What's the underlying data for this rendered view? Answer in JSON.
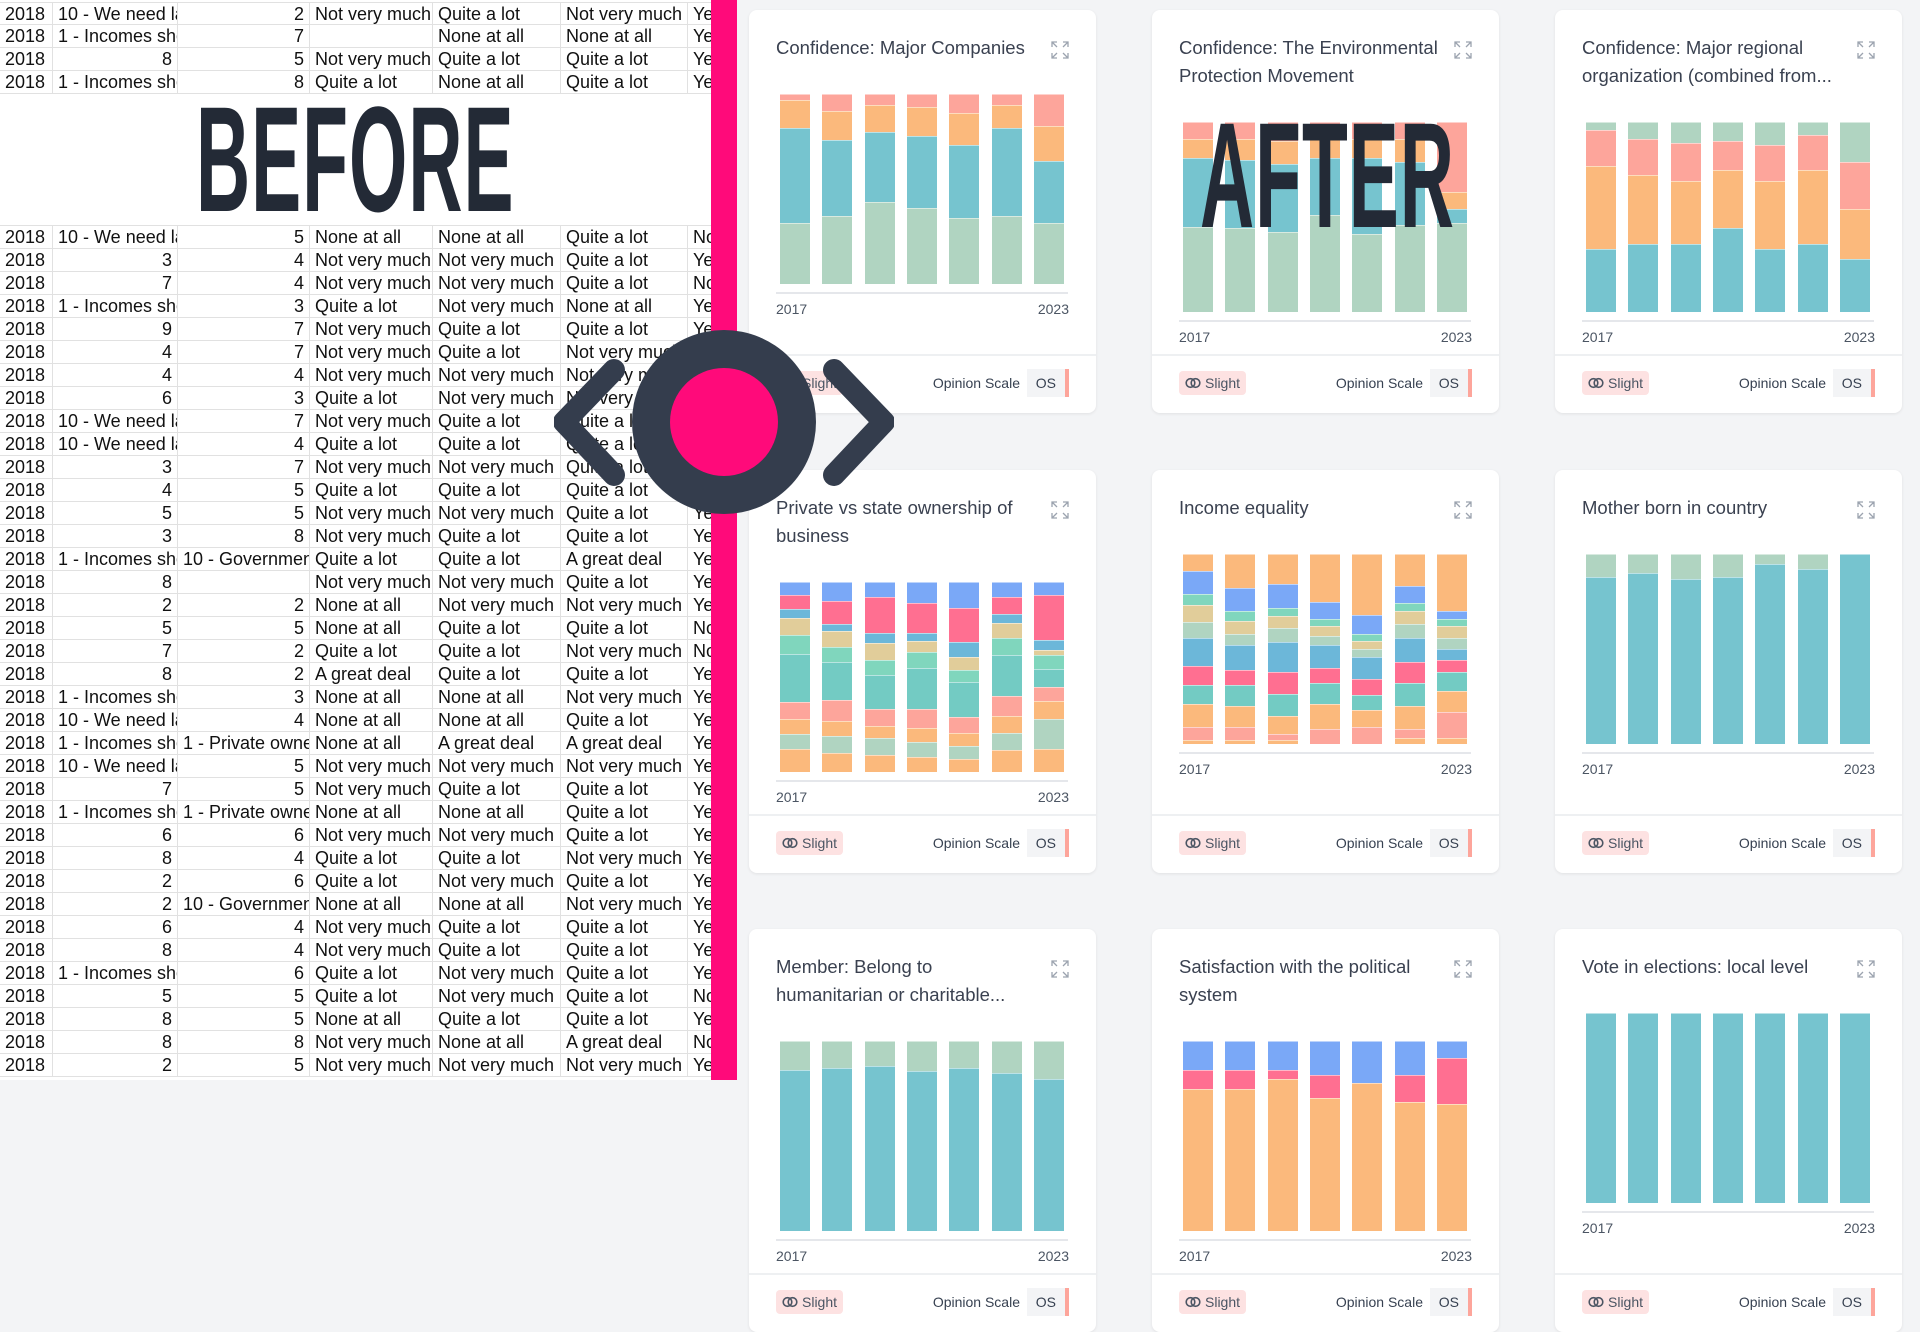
{
  "overlay": {
    "before_label": "BEFORE",
    "after_label": "AFTER",
    "accent": "#ff0a7a",
    "dark": "#343d4d"
  },
  "spreadsheet": {
    "rows": [
      [
        "2018",
        "10 - We need lar",
        "2",
        "Not very much",
        "Quite a lot",
        "Not very much",
        "Ye"
      ],
      [
        "2018",
        "1 - Incomes shou",
        "7",
        "",
        "None at all",
        "None at all",
        "Ye"
      ],
      [
        "2018",
        "8",
        "5",
        "Not very much",
        "Quite a lot",
        "Quite a lot",
        "Ye"
      ],
      [
        "2018",
        "1 - Incomes shou",
        "8",
        "Quite a lot",
        "None at all",
        "Quite a lot",
        "Ye"
      ],
      [
        "2018",
        "10 - We need lar",
        "5",
        "None at all",
        "None at all",
        "Quite a lot",
        "No"
      ],
      [
        "2018",
        "3",
        "4",
        "Not very much",
        "Not very much",
        "Quite a lot",
        "Ye"
      ],
      [
        "2018",
        "7",
        "4",
        "Not very much",
        "Not very much",
        "Quite a lot",
        "No"
      ],
      [
        "2018",
        "1 - Incomes shou",
        "3",
        "Quite a lot",
        "Not very much",
        "None at all",
        "Ye"
      ],
      [
        "2018",
        "9",
        "7",
        "Not very much",
        "Quite a lot",
        "Quite a lot",
        "Ye"
      ],
      [
        "2018",
        "4",
        "7",
        "Not very much",
        "Quite a lot",
        "Not very much",
        "Ye"
      ],
      [
        "2018",
        "4",
        "4",
        "Not very much",
        "Not very much",
        "Not very much",
        "Ye"
      ],
      [
        "2018",
        "6",
        "3",
        "Quite a lot",
        "Not very much",
        "Not very much",
        "Ye"
      ],
      [
        "2018",
        "10 - We need lar",
        "7",
        "Not very much",
        "Quite a lot",
        "Quite a lot",
        "Ye"
      ],
      [
        "2018",
        "10 - We need lar",
        "4",
        "Quite a lot",
        "Quite a lot",
        "Quite a lot",
        "Ye"
      ],
      [
        "2018",
        "3",
        "7",
        "Not very much",
        "Not very much",
        "Quite a lot",
        "Ye"
      ],
      [
        "2018",
        "4",
        "5",
        "Quite a lot",
        "Quite a lot",
        "Quite a lot",
        "Ye"
      ],
      [
        "2018",
        "5",
        "5",
        "Not very much",
        "Not very much",
        "Quite a lot",
        "Ye"
      ],
      [
        "2018",
        "3",
        "8",
        "Not very much",
        "Quite a lot",
        "Quite a lot",
        "Ye"
      ],
      [
        "2018",
        "1 - Incomes shou",
        "10 - Government",
        "Quite a lot",
        "Quite a lot",
        "A great deal",
        "Ye"
      ],
      [
        "2018",
        "8",
        "",
        "Not very much",
        "Not very much",
        "Quite a lot",
        "Ye"
      ],
      [
        "2018",
        "2",
        "2",
        "None at all",
        "Not very much",
        "Not very much",
        "Ye"
      ],
      [
        "2018",
        "5",
        "5",
        "None at all",
        "Quite a lot",
        "Quite a lot",
        "No"
      ],
      [
        "2018",
        "7",
        "2",
        "Quite a lot",
        "Quite a lot",
        "Not very much",
        "No"
      ],
      [
        "2018",
        "8",
        "2",
        "A great deal",
        "Quite a lot",
        "Quite a lot",
        "Ye"
      ],
      [
        "2018",
        "1 - Incomes shou",
        "3",
        "None at all",
        "None at all",
        "Not very much",
        "Ye"
      ],
      [
        "2018",
        "10 - We need lar",
        "4",
        "None at all",
        "None at all",
        "Quite a lot",
        "Ye"
      ],
      [
        "2018",
        "1 - Incomes shou",
        "1 - Private owne",
        "None at all",
        "A great deal",
        "A great deal",
        "Ye"
      ],
      [
        "2018",
        "10 - We need lar",
        "5",
        "Not very much",
        "Not very much",
        "Not very much",
        "Ye"
      ],
      [
        "2018",
        "7",
        "5",
        "Not very much",
        "Quite a lot",
        "Quite a lot",
        "Ye"
      ],
      [
        "2018",
        "1 - Incomes shou",
        "1 - Private owne",
        "None at all",
        "None at all",
        "Quite a lot",
        "Ye"
      ],
      [
        "2018",
        "6",
        "6",
        "Not very much",
        "Not very much",
        "Quite a lot",
        "Ye"
      ],
      [
        "2018",
        "8",
        "4",
        "Quite a lot",
        "Quite a lot",
        "Not very much",
        "Ye"
      ],
      [
        "2018",
        "2",
        "6",
        "Quite a lot",
        "Not very much",
        "Quite a lot",
        "Ye"
      ],
      [
        "2018",
        "2",
        "10 - Government",
        "None at all",
        "None at all",
        "Not very much",
        "Ye"
      ],
      [
        "2018",
        "6",
        "4",
        "Not very much",
        "Quite a lot",
        "Quite a lot",
        "Ye"
      ],
      [
        "2018",
        "8",
        "4",
        "Not very much",
        "Quite a lot",
        "Quite a lot",
        "Ye"
      ],
      [
        "2018",
        "1 - Incomes shou",
        "6",
        "Quite a lot",
        "Not very much",
        "Quite a lot",
        "Ye"
      ],
      [
        "2018",
        "5",
        "5",
        "Quite a lot",
        "Not very much",
        "Quite a lot",
        "No"
      ],
      [
        "2018",
        "8",
        "5",
        "None at all",
        "Quite a lot",
        "Quite a lot",
        "Ye"
      ],
      [
        "2018",
        "8",
        "8",
        "Not very much",
        "None at all",
        "A great deal",
        "No"
      ],
      [
        "2018",
        "2",
        "5",
        "Not very much",
        "Not very much",
        "Not very much",
        "Ye"
      ]
    ]
  },
  "cards_common": {
    "chip_label": "Slight",
    "chip_icon": "rings-icon",
    "scale_label": "Opinion Scale",
    "scale_code": "OS",
    "expand_icon": "expand-icon"
  },
  "chart_data": [
    {
      "type": "bar",
      "stacked": true,
      "title": "Confidence: Major Companies",
      "x_ticks": [
        "2017",
        "2023"
      ],
      "colors": [
        "#b0d4c1",
        "#76c4cf",
        "#fbb97c",
        "#fda59b"
      ],
      "values": [
        [
          32,
          50,
          15,
          3
        ],
        [
          36,
          40,
          15,
          9
        ],
        [
          43,
          37,
          14,
          6
        ],
        [
          40,
          38,
          15,
          7
        ],
        [
          35,
          38,
          17,
          10
        ],
        [
          36,
          46,
          12,
          6
        ],
        [
          32,
          33,
          18,
          17
        ]
      ]
    },
    {
      "type": "bar",
      "stacked": true,
      "title": "Confidence: The Environmental Protection Movement",
      "x_ticks": [
        "2017",
        "2023"
      ],
      "colors": [
        "#b0d4c1",
        "#76c4cf",
        "#fbb97c",
        "#fda59b"
      ],
      "values": [
        [
          45,
          36,
          10,
          9
        ],
        [
          44,
          36,
          11,
          9
        ],
        [
          42,
          36,
          12,
          10
        ],
        [
          51,
          30,
          10,
          9
        ],
        [
          41,
          40,
          10,
          9
        ],
        [
          46,
          33,
          12,
          9
        ],
        [
          47,
          7,
          9,
          37
        ]
      ]
    },
    {
      "type": "bar",
      "stacked": true,
      "title": "Confidence: Major regional organization (combined from...",
      "x_ticks": [
        "2017",
        "2023"
      ],
      "colors": [
        "#76c4cf",
        "#fbb97c",
        "#fda59b",
        "#b0d4c1"
      ],
      "values": [
        [
          33,
          44,
          19,
          4
        ],
        [
          36,
          36,
          19,
          9
        ],
        [
          36,
          33,
          20,
          11
        ],
        [
          44,
          31,
          15,
          10
        ],
        [
          33,
          36,
          19,
          12
        ],
        [
          36,
          39,
          18,
          7
        ],
        [
          28,
          26,
          25,
          21
        ]
      ]
    },
    {
      "type": "bar",
      "stacked": true,
      "title": "Private vs state ownership of business",
      "x_ticks": [
        "2017",
        "2023"
      ],
      "colors": [
        "#fbb97c",
        "#b0d4c1",
        "#fbb97c",
        "#fda59b",
        "#73cbc3",
        "#80d6bd",
        "#e1cd9a",
        "#6cb7d9",
        "#ff6f91",
        "#7aa8f7"
      ],
      "values": [
        [
          12,
          8,
          8,
          9,
          25,
          10,
          9,
          5,
          7,
          7
        ],
        [
          10,
          9,
          8,
          11,
          20,
          8,
          8,
          4,
          12,
          10
        ],
        [
          9,
          9,
          6,
          9,
          18,
          8,
          9,
          5,
          19,
          8
        ],
        [
          8,
          8,
          7,
          10,
          22,
          8,
          6,
          4,
          16,
          11
        ],
        [
          7,
          7,
          7,
          8,
          19,
          6,
          7,
          8,
          18,
          14
        ],
        [
          12,
          9,
          9,
          11,
          22,
          9,
          8,
          5,
          9,
          8
        ],
        [
          12,
          16,
          10,
          7,
          10,
          7,
          3,
          5,
          24,
          7
        ]
      ]
    },
    {
      "type": "bar",
      "stacked": true,
      "title": "Income equality",
      "x_ticks": [
        "2017",
        "2023"
      ],
      "colors": [
        "#fbb97c",
        "#fda59b",
        "#fbb97c",
        "#73cbc3",
        "#ff6f91",
        "#6cb7d9",
        "#b0d4c1",
        "#e1cd9a",
        "#80d6bd",
        "#7aa8f7"
      ],
      "values": [
        [
          2,
          7,
          12,
          10,
          10,
          15,
          8,
          9,
          6,
          12,
          9
        ],
        [
          2,
          7,
          11,
          11,
          8,
          13,
          6,
          7,
          5,
          12,
          18
        ],
        [
          2,
          3,
          9,
          11,
          11,
          15,
          7,
          6,
          4,
          12,
          15
        ],
        [
          0,
          8,
          13,
          11,
          8,
          12,
          5,
          5,
          4,
          9,
          25
        ],
        [
          0,
          9,
          9,
          8,
          8,
          12,
          4,
          4,
          4,
          10,
          32
        ],
        [
          3,
          5,
          12,
          12,
          11,
          13,
          7,
          7,
          4,
          9,
          17
        ],
        [
          3,
          14,
          11,
          10,
          6,
          6,
          6,
          6,
          4,
          4,
          30
        ]
      ]
    },
    {
      "type": "bar",
      "stacked": true,
      "title": "Mother born in country",
      "x_ticks": [
        "2017",
        "2023"
      ],
      "colors": [
        "#76c4cf",
        "#b0d4c1"
      ],
      "values": [
        [
          88,
          12
        ],
        [
          90,
          10
        ],
        [
          87,
          13
        ],
        [
          88,
          12
        ],
        [
          95,
          5
        ],
        [
          92,
          8
        ],
        [
          100,
          0
        ]
      ]
    },
    {
      "type": "bar",
      "stacked": true,
      "title": "Member: Belong to humanitarian or charitable...",
      "x_ticks": [
        "2017",
        "2023"
      ],
      "colors": [
        "#76c4cf",
        "#b0d4c1"
      ],
      "values": [
        [
          85,
          15
        ],
        [
          86,
          14
        ],
        [
          87,
          13
        ],
        [
          84,
          16
        ],
        [
          86,
          14
        ],
        [
          83,
          17
        ],
        [
          80,
          20
        ]
      ]
    },
    {
      "type": "bar",
      "stacked": true,
      "title": "Satisfaction with the political system",
      "x_ticks": [
        "2017",
        "2023"
      ],
      "colors": [
        "#fbb97c",
        "#ff6f91",
        "#7aa8f7"
      ],
      "values": [
        [
          75,
          10,
          15
        ],
        [
          75,
          10,
          15
        ],
        [
          80,
          5,
          15
        ],
        [
          70,
          12,
          18
        ],
        [
          78,
          0,
          22
        ],
        [
          68,
          14,
          18
        ],
        [
          60,
          22,
          8
        ]
      ]
    },
    {
      "type": "bar",
      "stacked": true,
      "title": "Vote in elections: local level",
      "x_ticks": [
        "2017",
        "2023"
      ],
      "colors": [
        "#76c4cf"
      ],
      "values": [
        [
          100
        ],
        [
          100
        ],
        [
          100
        ],
        [
          100
        ],
        [
          100
        ],
        [
          100
        ],
        [
          100
        ]
      ]
    }
  ]
}
